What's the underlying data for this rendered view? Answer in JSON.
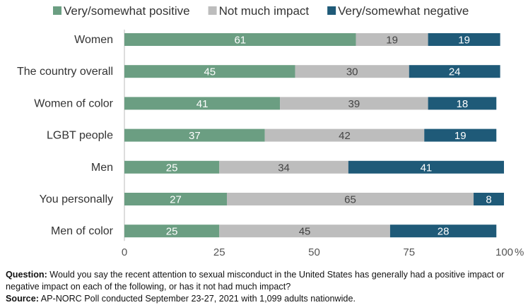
{
  "chart_data": {
    "type": "bar",
    "orientation": "horizontal",
    "stacked": true,
    "categories": [
      "Women",
      "The country overall",
      "Women of color",
      "LGBT people",
      "Men",
      "You personally",
      "Men of color"
    ],
    "series": [
      {
        "name": "Very/somewhat positive",
        "values": [
          61,
          45,
          41,
          37,
          25,
          27,
          25
        ],
        "color": "#6b9e82",
        "label_color": "#ffffff"
      },
      {
        "name": "Not much impact",
        "values": [
          19,
          30,
          39,
          42,
          34,
          65,
          45
        ],
        "color": "#bdbdbd",
        "label_color": "#444444"
      },
      {
        "name": "Very/somewhat negative",
        "values": [
          19,
          24,
          18,
          19,
          41,
          8,
          28
        ],
        "color": "#1f5a78",
        "label_color": "#ffffff"
      }
    ],
    "xlim": [
      0,
      100
    ],
    "xticks": [
      "0",
      "25",
      "50",
      "75",
      "100"
    ],
    "xunit": "%",
    "legend_position": "top",
    "grid": false
  },
  "notes": {
    "question_label": "Question:",
    "question_text": "Would you say the recent attention to sexual misconduct in the United States has generally had a positive impact or negative impact on each of the following, or has it not had much impact?",
    "source_label": "Source:",
    "source_text": "AP-NORC Poll conducted September 23-27, 2021 with 1,099 adults nationwide."
  }
}
